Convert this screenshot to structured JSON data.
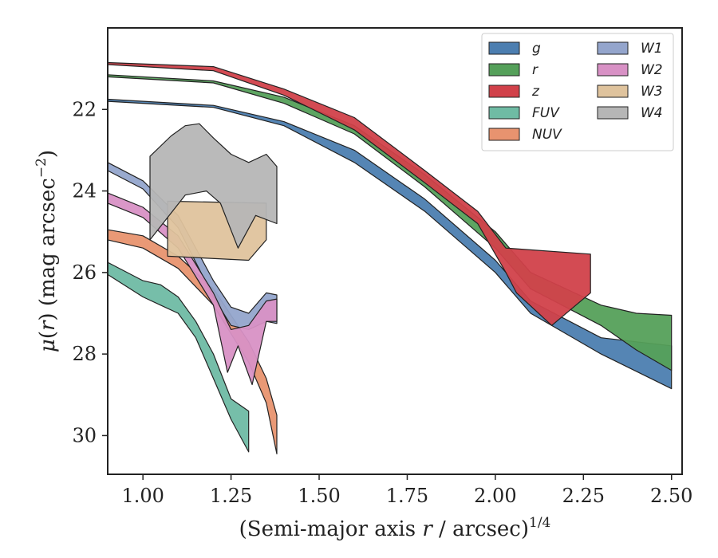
{
  "chart_data": {
    "type": "area",
    "xlabel": "(Semi-major axis r / arcsec)",
    "xlabel_parts": {
      "prefix": "(Semi-major axis ",
      "var": "r",
      "suffix": " / arcsec)",
      "exponent": "1/4"
    },
    "ylabel_parts": {
      "mu": "μ",
      "open": "(",
      "var": "r",
      "close": ") (mag arcsec",
      "exponent": "−2",
      "end": ")"
    },
    "xlim": [
      0.9,
      2.53
    ],
    "ylim": [
      30.95,
      20.0
    ],
    "y_inverted": true,
    "x_ticks": [
      1.0,
      1.25,
      1.5,
      1.75,
      2.0,
      2.25,
      2.5
    ],
    "x_tick_labels": [
      "1.00",
      "1.25",
      "1.50",
      "1.75",
      "2.00",
      "2.25",
      "2.50"
    ],
    "y_ticks": [
      22,
      24,
      26,
      28,
      30
    ],
    "y_tick_labels": [
      "22",
      "24",
      "26",
      "28",
      "30"
    ],
    "legend_position": "top-right",
    "legend_columns": 2,
    "series": [
      {
        "name": "g",
        "color": "#4c7eb0",
        "upper": [
          [
            0.9,
            21.75
          ],
          [
            1.2,
            21.9
          ],
          [
            1.4,
            22.3
          ],
          [
            1.6,
            23.0
          ],
          [
            1.8,
            24.2
          ],
          [
            2.0,
            25.7
          ],
          [
            2.1,
            26.7
          ],
          [
            2.3,
            27.6
          ],
          [
            2.5,
            27.8
          ]
        ],
        "lower": [
          [
            0.9,
            21.8
          ],
          [
            1.2,
            21.95
          ],
          [
            1.4,
            22.4
          ],
          [
            1.6,
            23.3
          ],
          [
            1.8,
            24.5
          ],
          [
            2.0,
            26.0
          ],
          [
            2.1,
            27.0
          ],
          [
            2.3,
            28.0
          ],
          [
            2.5,
            28.85
          ]
        ]
      },
      {
        "name": "r",
        "color": "#55a05a",
        "upper": [
          [
            0.9,
            21.15
          ],
          [
            1.2,
            21.3
          ],
          [
            1.4,
            21.7
          ],
          [
            1.6,
            22.4
          ],
          [
            1.8,
            23.6
          ],
          [
            2.0,
            25.0
          ],
          [
            2.1,
            26.0
          ],
          [
            2.3,
            26.8
          ],
          [
            2.4,
            27.0
          ],
          [
            2.5,
            27.05
          ]
        ],
        "lower": [
          [
            0.9,
            21.2
          ],
          [
            1.2,
            21.35
          ],
          [
            1.4,
            21.85
          ],
          [
            1.6,
            22.6
          ],
          [
            1.8,
            23.9
          ],
          [
            2.0,
            25.4
          ],
          [
            2.1,
            26.4
          ],
          [
            2.3,
            27.3
          ],
          [
            2.4,
            27.9
          ],
          [
            2.5,
            28.4
          ]
        ]
      },
      {
        "name": "z",
        "color": "#d1414a",
        "upper": [
          [
            0.9,
            20.85
          ],
          [
            1.2,
            20.95
          ],
          [
            1.4,
            21.5
          ],
          [
            1.6,
            22.2
          ],
          [
            1.8,
            23.5
          ],
          [
            1.95,
            24.5
          ],
          [
            2.03,
            25.4
          ],
          [
            2.27,
            25.55
          ],
          [
            2.27,
            26.5
          ]
        ],
        "lower": [
          [
            0.9,
            20.9
          ],
          [
            1.2,
            21.05
          ],
          [
            1.4,
            21.65
          ],
          [
            1.6,
            22.5
          ],
          [
            1.8,
            23.8
          ],
          [
            1.95,
            24.8
          ],
          [
            2.03,
            26.0
          ],
          [
            2.06,
            26.5
          ],
          [
            2.16,
            27.3
          ]
        ]
      },
      {
        "name": "FUV",
        "color": "#6fbba4",
        "upper": [
          [
            0.9,
            25.75
          ],
          [
            1.0,
            26.2
          ],
          [
            1.05,
            26.3
          ],
          [
            1.1,
            26.6
          ],
          [
            1.15,
            27.2
          ],
          [
            1.2,
            28.0
          ],
          [
            1.25,
            29.1
          ],
          [
            1.3,
            29.4
          ]
        ],
        "lower": [
          [
            0.9,
            26.05
          ],
          [
            1.0,
            26.6
          ],
          [
            1.05,
            26.8
          ],
          [
            1.1,
            27.0
          ],
          [
            1.15,
            27.6
          ],
          [
            1.2,
            28.6
          ],
          [
            1.25,
            29.6
          ],
          [
            1.3,
            30.4
          ]
        ]
      },
      {
        "name": "NUV",
        "color": "#e8936f",
        "upper": [
          [
            0.9,
            24.95
          ],
          [
            1.0,
            25.1
          ],
          [
            1.1,
            25.6
          ],
          [
            1.2,
            26.4
          ],
          [
            1.3,
            27.7
          ],
          [
            1.35,
            28.6
          ],
          [
            1.38,
            29.5
          ]
        ],
        "lower": [
          [
            0.9,
            25.2
          ],
          [
            1.0,
            25.4
          ],
          [
            1.1,
            25.9
          ],
          [
            1.2,
            26.8
          ],
          [
            1.3,
            28.2
          ],
          [
            1.35,
            29.2
          ],
          [
            1.38,
            30.45
          ]
        ]
      },
      {
        "name": "W1",
        "color": "#94a5cc",
        "upper": [
          [
            0.9,
            23.3
          ],
          [
            1.0,
            23.75
          ],
          [
            1.1,
            24.6
          ],
          [
            1.2,
            26.2
          ],
          [
            1.25,
            26.85
          ],
          [
            1.3,
            27.0
          ],
          [
            1.35,
            26.5
          ],
          [
            1.38,
            26.55
          ]
        ],
        "lower": [
          [
            0.9,
            23.5
          ],
          [
            1.0,
            23.95
          ],
          [
            1.1,
            24.9
          ],
          [
            1.2,
            26.6
          ],
          [
            1.25,
            27.3
          ],
          [
            1.3,
            27.4
          ],
          [
            1.35,
            27.2
          ],
          [
            1.38,
            27.25
          ]
        ]
      },
      {
        "name": "W2",
        "color": "#d891c5",
        "upper": [
          [
            0.9,
            24.05
          ],
          [
            1.0,
            24.4
          ],
          [
            1.1,
            25.1
          ],
          [
            1.2,
            26.5
          ],
          [
            1.25,
            27.4
          ],
          [
            1.3,
            27.3
          ],
          [
            1.35,
            26.7
          ],
          [
            1.38,
            26.65
          ]
        ],
        "lower": [
          [
            0.9,
            24.3
          ],
          [
            1.0,
            24.65
          ],
          [
            1.1,
            25.4
          ],
          [
            1.2,
            26.8
          ],
          [
            1.24,
            28.45
          ],
          [
            1.27,
            27.8
          ],
          [
            1.31,
            28.75
          ],
          [
            1.35,
            27.2
          ],
          [
            1.38,
            27.2
          ]
        ]
      },
      {
        "name": "W3",
        "color": "#dfc39d",
        "upper": [
          [
            1.07,
            24.25
          ],
          [
            1.35,
            24.3
          ]
        ],
        "lower": [
          [
            1.07,
            25.6
          ],
          [
            1.3,
            25.7
          ],
          [
            1.35,
            25.2
          ]
        ]
      },
      {
        "name": "W4",
        "color": "#b6b6b6",
        "upper": [
          [
            1.02,
            23.15
          ],
          [
            1.08,
            22.65
          ],
          [
            1.12,
            22.4
          ],
          [
            1.16,
            22.35
          ],
          [
            1.2,
            22.7
          ],
          [
            1.25,
            23.1
          ],
          [
            1.3,
            23.3
          ],
          [
            1.35,
            23.1
          ],
          [
            1.38,
            23.4
          ]
        ],
        "lower": [
          [
            1.02,
            25.2
          ],
          [
            1.12,
            24.1
          ],
          [
            1.18,
            24.0
          ],
          [
            1.22,
            24.3
          ],
          [
            1.27,
            25.4
          ],
          [
            1.32,
            24.6
          ],
          [
            1.38,
            24.8
          ]
        ]
      }
    ]
  }
}
